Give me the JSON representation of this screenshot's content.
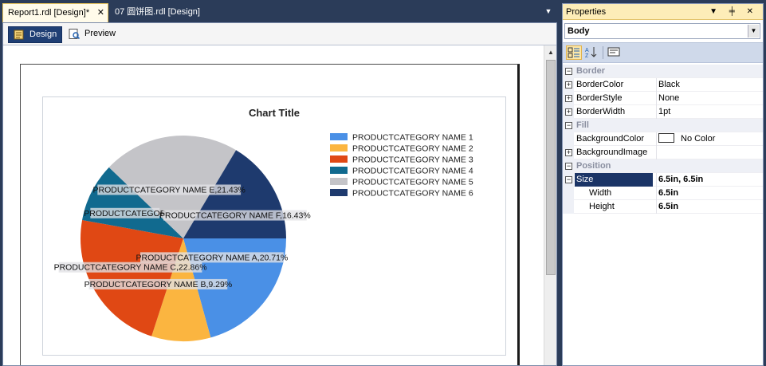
{
  "doc_tabs": {
    "active": "Report1.rdl [Design]*",
    "active_close": "✕",
    "inactive": "07 圆饼图.rdl [Design]",
    "dropdown": "▼"
  },
  "view_bar": {
    "design": "Design",
    "preview": "Preview"
  },
  "scrollbar": {
    "up": "▲",
    "down": "▼"
  },
  "chart_data": {
    "type": "pie",
    "title": "Chart Title",
    "legend_position": "right",
    "categories": [
      "PRODUCTCATEGORY NAME 1",
      "PRODUCTCATEGORY NAME 2",
      "PRODUCTCATEGORY NAME 3",
      "PRODUCTCATEGORY NAME 4",
      "PRODUCTCATEGORY NAME 5",
      "PRODUCTCATEGORY NAME 6"
    ],
    "values": [
      20.71,
      9.29,
      22.86,
      9.28,
      21.43,
      16.43
    ],
    "colors": [
      "#4a90e6",
      "#fbb540",
      "#e04814",
      "#116a8f",
      "#c4c4c8",
      "#1e3a6e"
    ],
    "data_labels": [
      "PRODUCTCATEGORY NAME A,20.71%",
      "PRODUCTCATEGORY NAME B,9.29%",
      "PRODUCTCATEGORY NAME C,22.86%",
      "PRODUCTCATEGOR",
      "PRODUCTCATEGORY NAME E,21.43%",
      "PRODUCTCATEGORY NAME F,16.43%"
    ]
  },
  "properties": {
    "title": "Properties",
    "title_icons": "▼ ╪ ✕",
    "object": "Body",
    "object_arrow": "▼",
    "rows": [
      {
        "kind": "cat",
        "name": "Border"
      },
      {
        "kind": "prop",
        "expand": "+",
        "name": "BorderColor",
        "value": "Black"
      },
      {
        "kind": "prop",
        "expand": "+",
        "name": "BorderStyle",
        "value": "None"
      },
      {
        "kind": "prop",
        "expand": "+",
        "name": "BorderWidth",
        "value": "1pt"
      },
      {
        "kind": "cat",
        "name": "Fill"
      },
      {
        "kind": "prop",
        "expand": "",
        "name": "BackgroundColor",
        "value": "No Color",
        "swatch": true
      },
      {
        "kind": "prop",
        "expand": "+",
        "name": "BackgroundImage",
        "value": ""
      },
      {
        "kind": "cat",
        "name": "Position"
      },
      {
        "kind": "prop",
        "expand": "−",
        "name": "Size",
        "value": "6.5in, 6.5in",
        "bold": true,
        "selected": true
      },
      {
        "kind": "prop",
        "expand": "",
        "name": "Width",
        "value": "6.5in",
        "bold": true,
        "indent": true
      },
      {
        "kind": "prop",
        "expand": "",
        "name": "Height",
        "value": "6.5in",
        "bold": true,
        "indent": true
      }
    ]
  }
}
